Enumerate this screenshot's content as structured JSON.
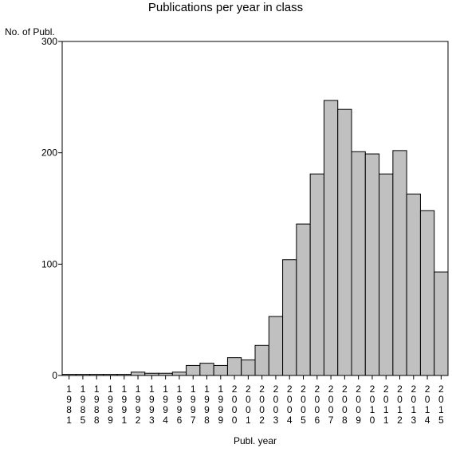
{
  "chart_data": {
    "type": "bar",
    "title": "Publications per year in class",
    "ylabel": "No. of Publ.",
    "xlabel": "Publ. year",
    "ylim": [
      0,
      300
    ],
    "yticks": [
      0,
      100,
      200,
      300
    ],
    "grid": false,
    "legend": "none",
    "bar_color": "#c0c0c0",
    "categories": [
      "1981",
      "1985",
      "1988",
      "1989",
      "1991",
      "1992",
      "1993",
      "1994",
      "1996",
      "1997",
      "1998",
      "1999",
      "2000",
      "2001",
      "2002",
      "2003",
      "2004",
      "2005",
      "2006",
      "2007",
      "2008",
      "2009",
      "2010",
      "2011",
      "2012",
      "2013",
      "2014",
      "2015"
    ],
    "values": [
      1,
      1,
      1,
      1,
      1,
      3,
      2,
      2,
      3,
      9,
      11,
      9,
      16,
      14,
      27,
      53,
      104,
      136,
      181,
      247,
      239,
      201,
      199,
      181,
      202,
      163,
      148,
      93
    ]
  }
}
